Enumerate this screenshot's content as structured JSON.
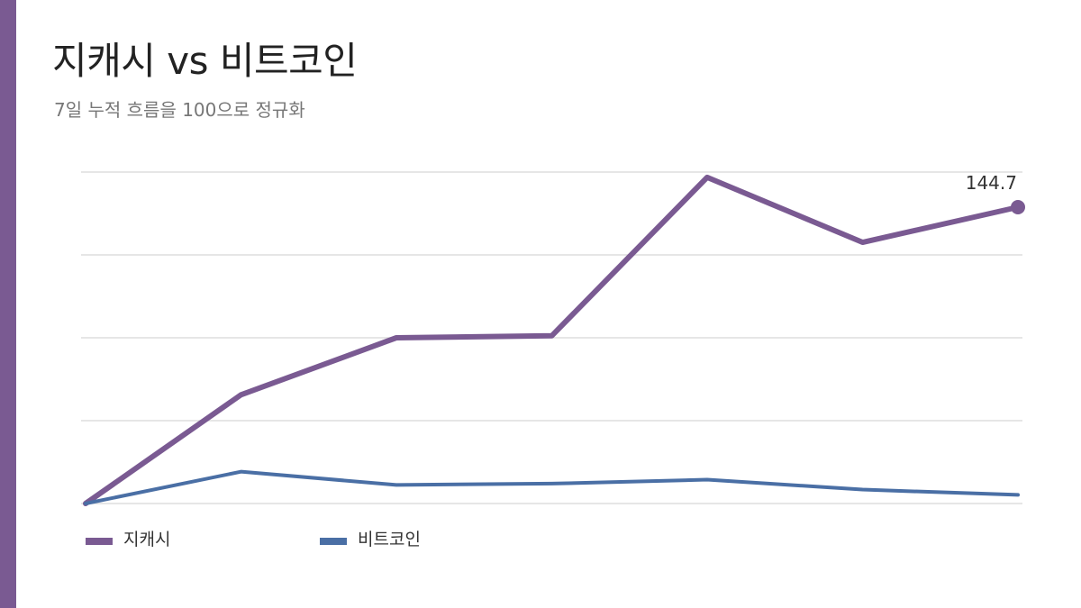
{
  "title": "지캐시 vs 비트코인",
  "subtitle": "7일 누적 흐름을 100으로 정규화",
  "colors": {
    "accent": "#7a5a92",
    "zcash": "#7a5a92",
    "bitcoin": "#4a6fa5",
    "grid": "#dddddd"
  },
  "chart_data": {
    "type": "line",
    "title": "지캐시 vs 비트코인",
    "subtitle": "7일 누적 흐름을 100으로 정규화",
    "xlabel": "",
    "ylabel": "",
    "x": [
      1,
      2,
      3,
      4,
      5,
      6,
      7
    ],
    "ylim": [
      100,
      150
    ],
    "grid": true,
    "legend_position": "bottom-left",
    "series": [
      {
        "name": "지캐시",
        "color": "#7a5a92",
        "values": [
          100,
          116.4,
          125.0,
          125.3,
          149.2,
          139.4,
          144.7
        ]
      },
      {
        "name": "비트코인",
        "color": "#4a6fa5",
        "values": [
          100,
          104.8,
          102.8,
          103.0,
          103.6,
          102.1,
          101.3
        ]
      }
    ],
    "end_label": {
      "series": "지캐시",
      "text": "144.7"
    }
  },
  "legend": [
    {
      "label": "지캐시",
      "color": "#7a5a92"
    },
    {
      "label": "비트코인",
      "color": "#4a6fa5"
    }
  ]
}
